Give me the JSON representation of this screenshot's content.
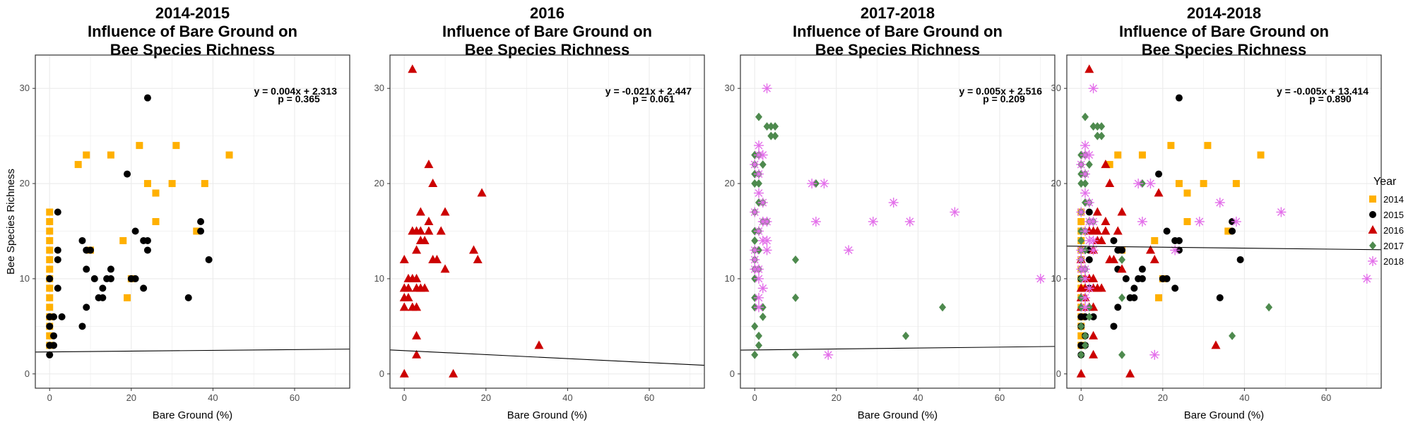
{
  "chart_data": {
    "type": "scatter",
    "y_axis_label": "Bee Species Richness",
    "x_axis_label": "Bare Ground (%)",
    "x_ticks": [
      0,
      20,
      40,
      60
    ],
    "y_ticks": [
      0,
      10,
      20,
      30
    ],
    "xlim": [
      -3.5,
      73.5
    ],
    "ylim": [
      -1.5,
      33.5
    ],
    "legend": {
      "title": "Year",
      "position": "right",
      "entries": [
        {
          "label": "2014",
          "color": "#FFB000",
          "shape": "square"
        },
        {
          "label": "2015",
          "color": "#000000",
          "shape": "circle"
        },
        {
          "label": "2016",
          "color": "#CC0000",
          "shape": "triangle"
        },
        {
          "label": "2017",
          "color": "#4E8A4E",
          "shape": "diamond"
        },
        {
          "label": "2018",
          "color": "#E36FEA",
          "shape": "asterisk"
        }
      ]
    },
    "series": [
      {
        "name": "2014",
        "points": [
          [
            0,
            17
          ],
          [
            0,
            16
          ],
          [
            0,
            15
          ],
          [
            0,
            14
          ],
          [
            0,
            13
          ],
          [
            0,
            12
          ],
          [
            0,
            11
          ],
          [
            0,
            10
          ],
          [
            0,
            9
          ],
          [
            0,
            8
          ],
          [
            0,
            7
          ],
          [
            0,
            6
          ],
          [
            0,
            5
          ],
          [
            0,
            4
          ],
          [
            0,
            3
          ],
          [
            7,
            22
          ],
          [
            9,
            23
          ],
          [
            10,
            13
          ],
          [
            15,
            23
          ],
          [
            18,
            14
          ],
          [
            19,
            8
          ],
          [
            20,
            10
          ],
          [
            22,
            24
          ],
          [
            24,
            20
          ],
          [
            26,
            19
          ],
          [
            26,
            16
          ],
          [
            30,
            20
          ],
          [
            31,
            24
          ],
          [
            36,
            15
          ],
          [
            38,
            20
          ],
          [
            44,
            23
          ]
        ]
      },
      {
        "name": "2015",
        "points": [
          [
            0,
            2
          ],
          [
            0,
            3
          ],
          [
            0,
            5
          ],
          [
            0,
            6
          ],
          [
            0,
            10
          ],
          [
            1,
            3
          ],
          [
            1,
            4
          ],
          [
            1,
            6
          ],
          [
            2,
            13
          ],
          [
            2,
            12
          ],
          [
            2,
            9
          ],
          [
            2,
            17
          ],
          [
            3,
            6
          ],
          [
            8,
            14
          ],
          [
            8,
            5
          ],
          [
            9,
            11
          ],
          [
            9,
            7
          ],
          [
            9,
            13
          ],
          [
            10,
            13
          ],
          [
            11,
            10
          ],
          [
            12,
            8
          ],
          [
            13,
            8
          ],
          [
            13,
            9
          ],
          [
            14,
            10
          ],
          [
            15,
            11
          ],
          [
            15,
            10
          ],
          [
            19,
            21
          ],
          [
            20,
            10
          ],
          [
            21,
            15
          ],
          [
            21,
            10
          ],
          [
            23,
            14
          ],
          [
            23,
            9
          ],
          [
            24,
            14
          ],
          [
            24,
            13
          ],
          [
            24,
            29
          ],
          [
            34,
            8
          ],
          [
            37,
            16
          ],
          [
            37,
            15
          ],
          [
            39,
            12
          ]
        ]
      },
      {
        "name": "2016",
        "points": [
          [
            0,
            0
          ],
          [
            0,
            7
          ],
          [
            0,
            8
          ],
          [
            0,
            9
          ],
          [
            0,
            12
          ],
          [
            1,
            8
          ],
          [
            1,
            9
          ],
          [
            1,
            10
          ],
          [
            2,
            7
          ],
          [
            2,
            10
          ],
          [
            2,
            15
          ],
          [
            2,
            32
          ],
          [
            3,
            7
          ],
          [
            3,
            9
          ],
          [
            3,
            10
          ],
          [
            3,
            13
          ],
          [
            3,
            15
          ],
          [
            3,
            2
          ],
          [
            3,
            4
          ],
          [
            4,
            9
          ],
          [
            4,
            14
          ],
          [
            4,
            15
          ],
          [
            4,
            17
          ],
          [
            5,
            9
          ],
          [
            5,
            14
          ],
          [
            6,
            15
          ],
          [
            6,
            22
          ],
          [
            6,
            16
          ],
          [
            7,
            12
          ],
          [
            7,
            20
          ],
          [
            8,
            12
          ],
          [
            9,
            15
          ],
          [
            10,
            17
          ],
          [
            10,
            11
          ],
          [
            12,
            0
          ],
          [
            17,
            13
          ],
          [
            18,
            12
          ],
          [
            19,
            19
          ],
          [
            33,
            3
          ]
        ]
      },
      {
        "name": "2017",
        "points": [
          [
            0,
            2
          ],
          [
            0,
            5
          ],
          [
            0,
            7
          ],
          [
            0,
            8
          ],
          [
            0,
            10
          ],
          [
            0,
            11
          ],
          [
            0,
            12
          ],
          [
            0,
            13
          ],
          [
            0,
            14
          ],
          [
            0,
            15
          ],
          [
            0,
            17
          ],
          [
            0,
            20
          ],
          [
            0,
            21
          ],
          [
            0,
            22
          ],
          [
            0,
            23
          ],
          [
            1,
            3
          ],
          [
            1,
            4
          ],
          [
            1,
            11
          ],
          [
            1,
            13
          ],
          [
            1,
            15
          ],
          [
            1,
            18
          ],
          [
            1,
            20
          ],
          [
            1,
            21
          ],
          [
            1,
            23
          ],
          [
            1,
            27
          ],
          [
            2,
            6
          ],
          [
            2,
            7
          ],
          [
            2,
            16
          ],
          [
            2,
            18
          ],
          [
            2,
            22
          ],
          [
            3,
            16
          ],
          [
            3,
            26
          ],
          [
            4,
            25
          ],
          [
            4,
            26
          ],
          [
            5,
            25
          ],
          [
            5,
            26
          ],
          [
            10,
            12
          ],
          [
            10,
            8
          ],
          [
            10,
            2
          ],
          [
            15,
            20
          ],
          [
            37,
            4
          ],
          [
            46,
            7
          ]
        ]
      },
      {
        "name": "2018",
        "points": [
          [
            0,
            11
          ],
          [
            0,
            12
          ],
          [
            0,
            13
          ],
          [
            0,
            17
          ],
          [
            0,
            22
          ],
          [
            1,
            7
          ],
          [
            1,
            8
          ],
          [
            1,
            10
          ],
          [
            1,
            11
          ],
          [
            1,
            15
          ],
          [
            1,
            19
          ],
          [
            1,
            21
          ],
          [
            1,
            23
          ],
          [
            1,
            24
          ],
          [
            2,
            9
          ],
          [
            2,
            14
          ],
          [
            2,
            16
          ],
          [
            2,
            18
          ],
          [
            2,
            23
          ],
          [
            3,
            13
          ],
          [
            3,
            14
          ],
          [
            3,
            16
          ],
          [
            3,
            30
          ],
          [
            14,
            20
          ],
          [
            15,
            16
          ],
          [
            17,
            20
          ],
          [
            18,
            2
          ],
          [
            23,
            13
          ],
          [
            29,
            16
          ],
          [
            34,
            18
          ],
          [
            38,
            16
          ],
          [
            49,
            17
          ],
          [
            70,
            10
          ]
        ]
      }
    ],
    "panels": [
      {
        "title_lines": [
          "2014-2015",
          "Influence of Bare Ground on",
          "Bee Species Richness"
        ],
        "series_shown": [
          "2014",
          "2015"
        ],
        "equation": "y = 0.004x + 2.313",
        "p_value": "p = 0.365",
        "fit": {
          "slope": 0.004,
          "intercept": 2.313
        }
      },
      {
        "title_lines": [
          "2016",
          "Influence of Bare Ground on",
          "Bee Species Richness"
        ],
        "series_shown": [
          "2016"
        ],
        "equation": "y = -0.021x + 2.447",
        "p_value": "p = 0.061",
        "fit": {
          "slope": -0.021,
          "intercept": 2.447
        }
      },
      {
        "title_lines": [
          "2017-2018",
          "Influence of Bare Ground on",
          "Bee Species Richness"
        ],
        "series_shown": [
          "2017",
          "2018"
        ],
        "equation": "y = 0.005x + 2.516",
        "p_value": "p = 0.209",
        "fit": {
          "slope": 0.005,
          "intercept": 2.516
        }
      },
      {
        "title_lines": [
          "2014-2018",
          "Influence of Bare Ground on",
          "Bee Species Richness"
        ],
        "series_shown": [
          "2014",
          "2015",
          "2016",
          "2017",
          "2018"
        ],
        "equation": "y = -0.005x + 13.414",
        "p_value": "p = 0.890",
        "fit": {
          "slope": -0.005,
          "intercept": 13.414
        }
      }
    ],
    "grid": true
  }
}
